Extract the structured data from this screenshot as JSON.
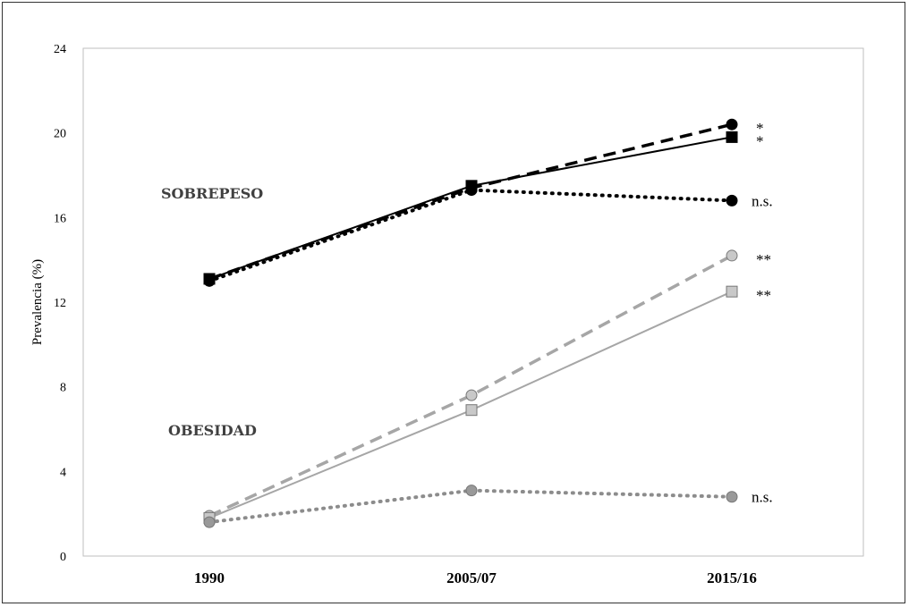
{
  "chart_data": {
    "type": "line",
    "ylabel": "Prevalencia (%)",
    "ylim": [
      0,
      24
    ],
    "yticks": [
      "0",
      "4",
      "8",
      "12",
      "16",
      "20",
      "24"
    ],
    "categories": [
      "1990",
      "2005/07",
      "2015/16"
    ],
    "group_labels": {
      "overweight": "SOBREPESO",
      "obesity": "OBESIDAD"
    },
    "series": [
      {
        "group": "overweight",
        "marker": "circle",
        "line": "dashed",
        "color": "#000000",
        "values": [
          13.1,
          17.4,
          20.4
        ],
        "annotation": "*"
      },
      {
        "group": "overweight",
        "marker": "square",
        "line": "solid",
        "color": "#000000",
        "values": [
          13.1,
          17.5,
          19.8
        ],
        "annotation": "*"
      },
      {
        "group": "overweight",
        "marker": "circle",
        "line": "dotted",
        "color": "#000000",
        "values": [
          13.0,
          17.3,
          16.8
        ],
        "annotation": "n.s."
      },
      {
        "group": "obesity",
        "marker": "circle",
        "line": "dashed",
        "color": "#a6a6a6",
        "values": [
          1.9,
          7.6,
          14.2
        ],
        "annotation": "**"
      },
      {
        "group": "obesity",
        "marker": "square",
        "line": "solid",
        "color": "#a6a6a6",
        "values": [
          1.8,
          6.9,
          12.5
        ],
        "annotation": "**"
      },
      {
        "group": "obesity",
        "marker": "circle",
        "line": "dotted",
        "color": "#8c8c8c",
        "values": [
          1.6,
          3.1,
          2.8
        ],
        "annotation": "n.s."
      }
    ]
  }
}
